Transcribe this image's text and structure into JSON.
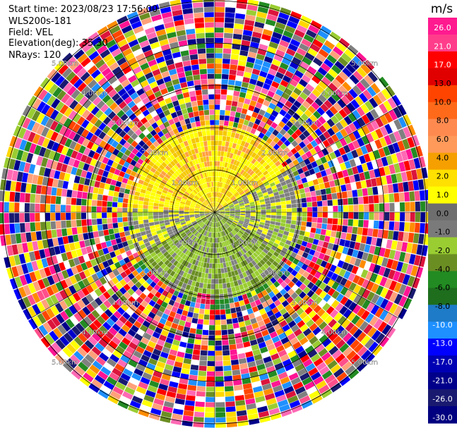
{
  "header": {
    "start_time": "Start time: 2023/08/23 17:56:00",
    "instrument": "WLS200s-181",
    "field": "Field: VEL",
    "elevation": "Elevation(deg): 35.30",
    "nrays": "NRays: 120"
  },
  "chart_data": {
    "type": "heatmap",
    "projection": "polar PPI",
    "field": "VEL",
    "units": "m/s",
    "rays": 120,
    "range_rings_km": [
      1.0,
      2.0,
      3.0,
      4.0,
      5.0
    ],
    "range_ring_labels": [
      "1.00km",
      "2.00km",
      "3.00km",
      "4.00km",
      "5.00km"
    ],
    "colorbar_ticks": [
      "26.0",
      "21.0",
      "17.0",
      "13.0",
      "10.0",
      "8.0",
      "6.0",
      "4.0",
      "2.0",
      "1.0",
      "0.0",
      "-1.0",
      "-2.0",
      "-4.0",
      "-6.0",
      "-8.0",
      "-10.0",
      "-13.0",
      "-17.0",
      "-21.0",
      "-26.0",
      "-30.0"
    ],
    "colorbar_colors": [
      "#ff1a90",
      "#ff3d8b",
      "#ff0000",
      "#e10000",
      "#ff4400",
      "#ff6a1a",
      "#ff8a50",
      "#ff9a5a",
      "#f5a000",
      "#ffe000",
      "#ffff00",
      "#6e6e6e",
      "#7a7a7a",
      "#9acd32",
      "#6b8e23",
      "#228b22",
      "#1e6e1e",
      "#1e7bc8",
      "#1e90ff",
      "#0000ff",
      "#0000b4",
      "#00008b",
      "#191970",
      "#000080"
    ],
    "colorbar_label": "m/s"
  }
}
